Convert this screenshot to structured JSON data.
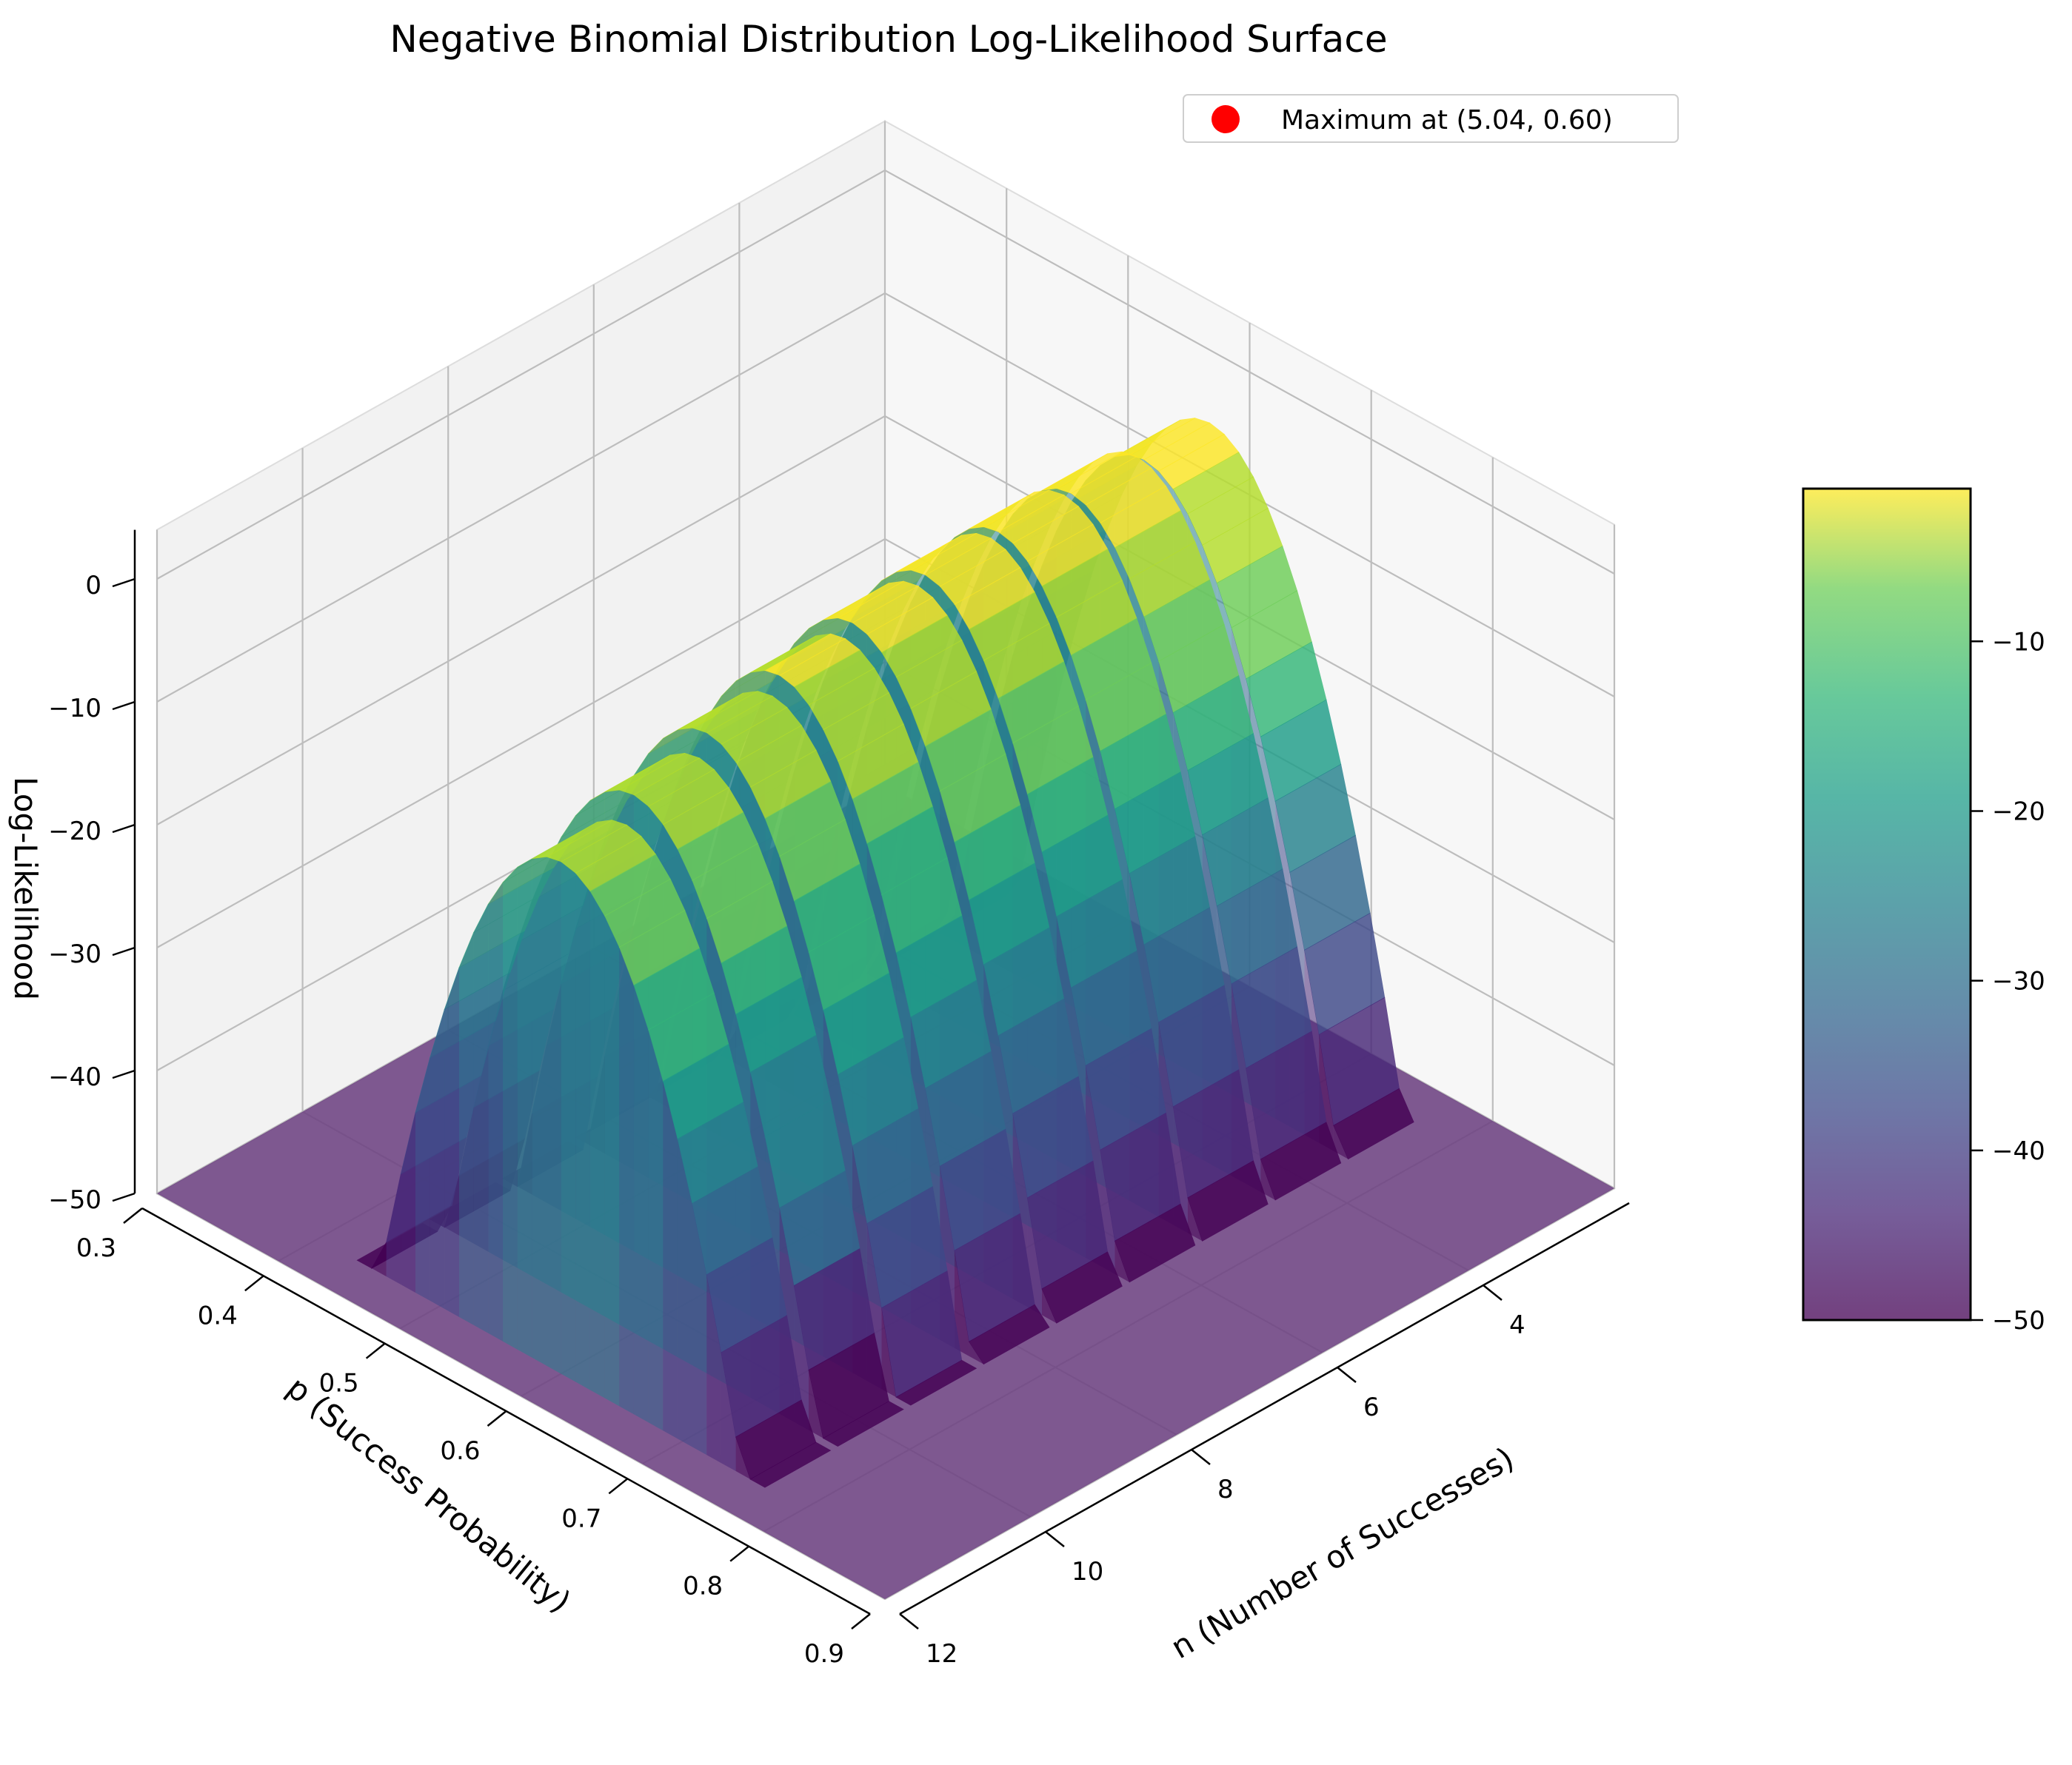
{
  "chart_data": {
    "type": "surface3d",
    "title": "Negative Binomial Distribution Log-Likelihood Surface",
    "xlabel": "n (Number of Successes)",
    "ylabel": "p (Success Probability)",
    "zlabel": "Log-Likelihood",
    "x_ticks": [
      4,
      6,
      8,
      10,
      12
    ],
    "y_ticks": [
      0.3,
      0.4,
      0.5,
      0.6,
      0.7,
      0.8,
      0.9
    ],
    "z_ticks": [
      0,
      -10,
      -20,
      -30,
      -40,
      -50
    ],
    "xlim": [
      2,
      12
    ],
    "ylim": [
      0.3,
      0.9
    ],
    "zlim": [
      -50,
      4
    ],
    "surface_floor": -50,
    "n_values": [
      3,
      4,
      5,
      6,
      7,
      8,
      9,
      10,
      11
    ],
    "p_peak": 0.6,
    "p_halfwidth": 0.16,
    "maximum": {
      "n": 5.04,
      "p": 0.6,
      "log_likelihood": -1.5
    },
    "legend": {
      "label": "Maximum at (5.04, 0.60)",
      "color": "#ff0000",
      "placement": "top-right"
    },
    "colorbar": {
      "ticks": [
        -10,
        -20,
        -30,
        -40,
        -50
      ],
      "range": [
        -50,
        -1
      ],
      "colormap": "viridis"
    },
    "grid": true
  }
}
